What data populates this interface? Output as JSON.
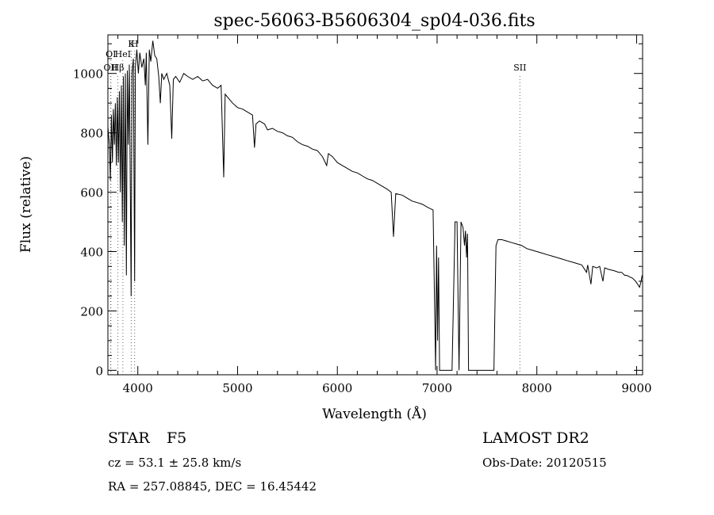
{
  "chart_data": {
    "type": "line",
    "title": "spec-56063-B5606304_sp04-036.fits",
    "xlabel": "Wavelength (Å)",
    "ylabel": "Flux (relative)",
    "xlim": [
      3700,
      9060
    ],
    "ylim": [
      -15,
      1130
    ],
    "x_ticks": [
      4000,
      5000,
      6000,
      7000,
      8000,
      9000
    ],
    "y_ticks": [
      0,
      200,
      400,
      600,
      800,
      1000
    ],
    "x_tick_labels": [
      "4000",
      "5000",
      "6000",
      "7000",
      "8000",
      "9000"
    ],
    "y_tick_labels": [
      "0",
      "200",
      "400",
      "600",
      "800",
      "1000"
    ],
    "grid": false,
    "line_markers": [
      {
        "label": "H",
        "x": 3968,
        "label_y": 1090
      },
      {
        "label": "K",
        "x": 3934,
        "label_y": 1090
      },
      {
        "label": "OI",
        "x": 3730,
        "label_y": 1055
      },
      {
        "label": "HeI",
        "x": 3850,
        "label_y": 1055
      },
      {
        "label": "OII",
        "x": 3727,
        "label_y": 1010
      },
      {
        "label": "Hβ",
        "x": 3800,
        "label_y": 1010
      },
      {
        "label": "SII",
        "x": 7830,
        "label_y": 1010
      }
    ],
    "series": [
      {
        "values": [
          [
            3700,
            820
          ],
          [
            3715,
            760
          ],
          [
            3725,
            640
          ],
          [
            3735,
            860
          ],
          [
            3745,
            700
          ],
          [
            3755,
            880
          ],
          [
            3765,
            760
          ],
          [
            3775,
            900
          ],
          [
            3785,
            690
          ],
          [
            3795,
            920
          ],
          [
            3805,
            700
          ],
          [
            3815,
            940
          ],
          [
            3825,
            600
          ],
          [
            3835,
            960
          ],
          [
            3845,
            500
          ],
          [
            3855,
            990
          ],
          [
            3865,
            420
          ],
          [
            3875,
            1000
          ],
          [
            3885,
            320
          ],
          [
            3895,
            1010
          ],
          [
            3905,
            760
          ],
          [
            3915,
            1030
          ],
          [
            3925,
            600
          ],
          [
            3933,
            250
          ],
          [
            3941,
            1000
          ],
          [
            3955,
            1050
          ],
          [
            3968,
            300
          ],
          [
            3975,
            1020
          ],
          [
            3990,
            1080
          ],
          [
            4005,
            1000
          ],
          [
            4020,
            1070
          ],
          [
            4040,
            1020
          ],
          [
            4060,
            1050
          ],
          [
            4075,
            960
          ],
          [
            4085,
            1070
          ],
          [
            4101,
            760
          ],
          [
            4115,
            1080
          ],
          [
            4130,
            1040
          ],
          [
            4150,
            1110
          ],
          [
            4170,
            1060
          ],
          [
            4190,
            1050
          ],
          [
            4210,
            990
          ],
          [
            4226,
            900
          ],
          [
            4240,
            1000
          ],
          [
            4260,
            980
          ],
          [
            4290,
            1000
          ],
          [
            4320,
            960
          ],
          [
            4340,
            780
          ],
          [
            4356,
            980
          ],
          [
            4380,
            990
          ],
          [
            4420,
            970
          ],
          [
            4460,
            1000
          ],
          [
            4500,
            990
          ],
          [
            4550,
            980
          ],
          [
            4600,
            990
          ],
          [
            4650,
            975
          ],
          [
            4700,
            980
          ],
          [
            4750,
            960
          ],
          [
            4800,
            950
          ],
          [
            4835,
            960
          ],
          [
            4861,
            650
          ],
          [
            4875,
            930
          ],
          [
            4900,
            920
          ],
          [
            4950,
            900
          ],
          [
            5000,
            885
          ],
          [
            5050,
            880
          ],
          [
            5100,
            870
          ],
          [
            5150,
            860
          ],
          [
            5170,
            750
          ],
          [
            5185,
            830
          ],
          [
            5220,
            840
          ],
          [
            5270,
            830
          ],
          [
            5300,
            810
          ],
          [
            5350,
            815
          ],
          [
            5400,
            805
          ],
          [
            5450,
            800
          ],
          [
            5500,
            790
          ],
          [
            5550,
            785
          ],
          [
            5600,
            770
          ],
          [
            5650,
            760
          ],
          [
            5700,
            755
          ],
          [
            5750,
            745
          ],
          [
            5800,
            740
          ],
          [
            5850,
            720
          ],
          [
            5893,
            690
          ],
          [
            5910,
            730
          ],
          [
            5950,
            720
          ],
          [
            6000,
            700
          ],
          [
            6050,
            690
          ],
          [
            6100,
            680
          ],
          [
            6150,
            670
          ],
          [
            6200,
            665
          ],
          [
            6250,
            655
          ],
          [
            6300,
            645
          ],
          [
            6350,
            640
          ],
          [
            6400,
            630
          ],
          [
            6450,
            620
          ],
          [
            6500,
            610
          ],
          [
            6540,
            600
          ],
          [
            6563,
            450
          ],
          [
            6585,
            595
          ],
          [
            6650,
            590
          ],
          [
            6700,
            580
          ],
          [
            6750,
            570
          ],
          [
            6800,
            565
          ],
          [
            6850,
            560
          ],
          [
            6900,
            550
          ],
          [
            6960,
            540
          ],
          [
            6985,
            0
          ],
          [
            6995,
            420
          ],
          [
            7005,
            100
          ],
          [
            7015,
            380
          ],
          [
            7025,
            0
          ],
          [
            7040,
            0
          ],
          [
            7150,
            0
          ],
          [
            7180,
            500
          ],
          [
            7200,
            500
          ],
          [
            7220,
            0
          ],
          [
            7240,
            500
          ],
          [
            7260,
            480
          ],
          [
            7275,
            420
          ],
          [
            7285,
            470
          ],
          [
            7295,
            380
          ],
          [
            7305,
            460
          ],
          [
            7315,
            0
          ],
          [
            7330,
            0
          ],
          [
            7550,
            0
          ],
          [
            7570,
            0
          ],
          [
            7590,
            420
          ],
          [
            7610,
            440
          ],
          [
            7650,
            440
          ],
          [
            7700,
            435
          ],
          [
            7750,
            430
          ],
          [
            7800,
            425
          ],
          [
            7850,
            420
          ],
          [
            7900,
            410
          ],
          [
            7950,
            405
          ],
          [
            8000,
            400
          ],
          [
            8050,
            395
          ],
          [
            8100,
            390
          ],
          [
            8150,
            385
          ],
          [
            8200,
            380
          ],
          [
            8250,
            375
          ],
          [
            8300,
            370
          ],
          [
            8350,
            365
          ],
          [
            8400,
            360
          ],
          [
            8450,
            355
          ],
          [
            8498,
            330
          ],
          [
            8510,
            355
          ],
          [
            8542,
            290
          ],
          [
            8560,
            350
          ],
          [
            8600,
            345
          ],
          [
            8630,
            350
          ],
          [
            8662,
            300
          ],
          [
            8680,
            345
          ],
          [
            8720,
            340
          ],
          [
            8780,
            335
          ],
          [
            8820,
            330
          ],
          [
            8850,
            330
          ],
          [
            8880,
            320
          ],
          [
            8900,
            320
          ],
          [
            8930,
            315
          ],
          [
            8960,
            310
          ],
          [
            8990,
            300
          ],
          [
            9010,
            290
          ],
          [
            9030,
            280
          ],
          [
            9045,
            300
          ],
          [
            9055,
            320
          ]
        ]
      }
    ]
  },
  "info": {
    "object_type": "STAR",
    "subclass": "F5",
    "survey": "LAMOST DR2",
    "redshift": "cz = 53.1 ± 25.8 km/s",
    "obs_date": "Obs-Date: 20120515",
    "coords": "RA = 257.08845, DEC =  16.45442"
  }
}
